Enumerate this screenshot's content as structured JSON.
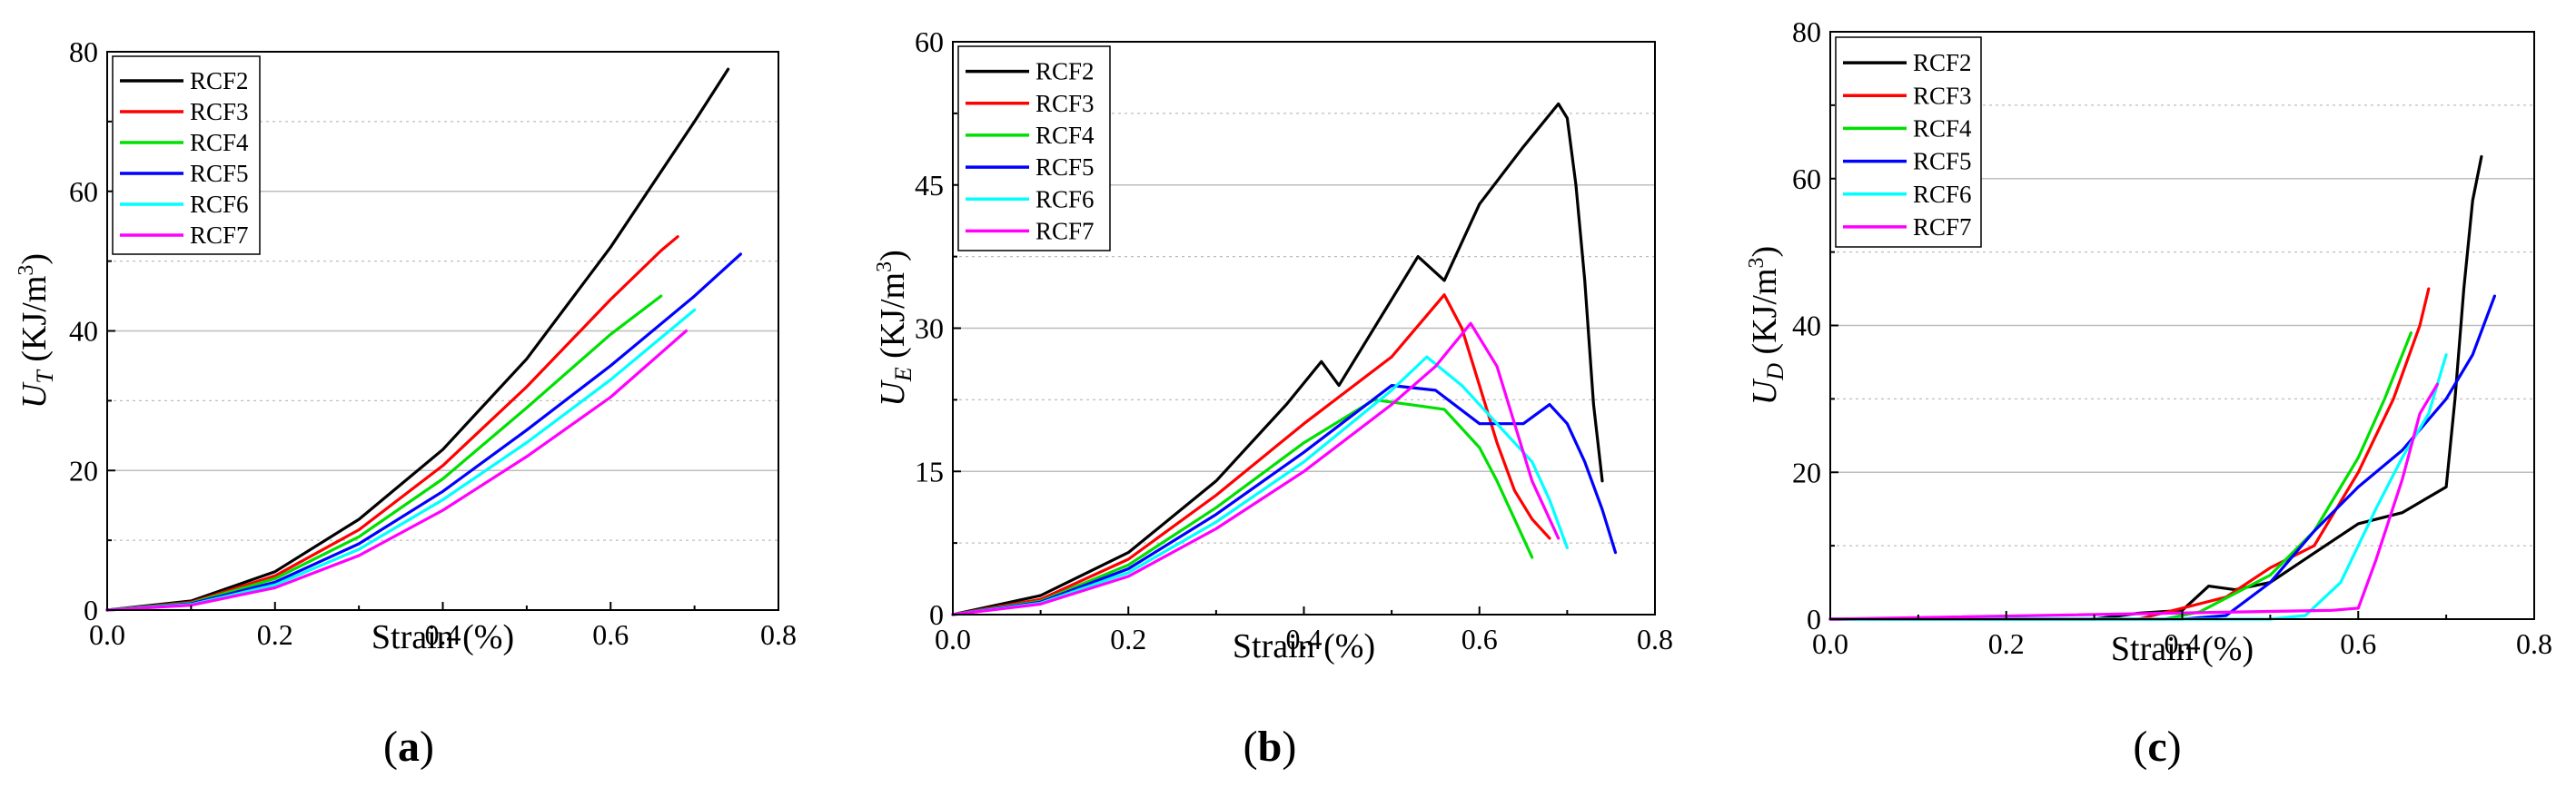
{
  "colors": {
    "RCF2": "#000000",
    "RCF3": "#ff0000",
    "RCF4": "#00e000",
    "RCF5": "#0000ff",
    "RCF6": "#00ffff",
    "RCF7": "#ff00ff",
    "grid": "#bdbdbd"
  },
  "chart_data": [
    {
      "type": "line",
      "panel_label": "(a)",
      "panel_letter": "a",
      "xlabel": "Strain (%)",
      "ylabel": "U_T (KJ/m³)",
      "ylabel_base": "U",
      "ylabel_sub": "T",
      "ylabel_unit": " (KJ/m",
      "ylabel_sup": "3",
      "xlim": [
        0.0,
        0.8
      ],
      "ylim": [
        0,
        80
      ],
      "xticks": [
        0.0,
        0.2,
        0.4,
        0.6,
        0.8
      ],
      "xtick_labels": [
        "0.0",
        "0.2",
        "0.4",
        "0.6",
        "0.8"
      ],
      "yticks": [
        0,
        20,
        40,
        60,
        80
      ],
      "ytick_labels": [
        "0",
        "20",
        "40",
        "60",
        "80"
      ],
      "grid": "horizontal",
      "legend": "top-left",
      "series": [
        {
          "name": "RCF2",
          "x": [
            0,
            0.1,
            0.2,
            0.3,
            0.4,
            0.5,
            0.6,
            0.7,
            0.74
          ],
          "y": [
            0,
            1.3,
            5.5,
            13,
            23,
            36,
            52,
            70,
            77.5
          ]
        },
        {
          "name": "RCF3",
          "x": [
            0,
            0.1,
            0.2,
            0.3,
            0.4,
            0.5,
            0.6,
            0.66,
            0.68
          ],
          "y": [
            0,
            1.1,
            4.9,
            11.5,
            20.7,
            32,
            44.5,
            51.5,
            53.5
          ]
        },
        {
          "name": "RCF4",
          "x": [
            0,
            0.1,
            0.2,
            0.3,
            0.4,
            0.5,
            0.6,
            0.66
          ],
          "y": [
            0,
            1.0,
            4.5,
            10.5,
            18.8,
            29,
            39.5,
            45
          ]
        },
        {
          "name": "RCF5",
          "x": [
            0,
            0.1,
            0.2,
            0.3,
            0.4,
            0.5,
            0.6,
            0.7,
            0.755
          ],
          "y": [
            0,
            0.9,
            4.0,
            9.5,
            17,
            25.8,
            35,
            45,
            51
          ]
        },
        {
          "name": "RCF6",
          "x": [
            0,
            0.1,
            0.2,
            0.3,
            0.4,
            0.5,
            0.6,
            0.7
          ],
          "y": [
            0,
            0.8,
            3.6,
            8.7,
            15.8,
            24,
            33,
            43
          ]
        },
        {
          "name": "RCF7",
          "x": [
            0,
            0.1,
            0.2,
            0.3,
            0.4,
            0.5,
            0.6,
            0.69
          ],
          "y": [
            0,
            0.7,
            3.2,
            7.8,
            14.3,
            22,
            30.5,
            40
          ]
        }
      ]
    },
    {
      "type": "line",
      "panel_label": "(b)",
      "panel_letter": "b",
      "xlabel": "Strain (%)",
      "ylabel": "U_E (KJ/m³)",
      "ylabel_base": "U",
      "ylabel_sub": "E",
      "ylabel_unit": " (KJ/m",
      "ylabel_sup": "3",
      "xlim": [
        0.0,
        0.8
      ],
      "ylim": [
        0,
        60
      ],
      "xticks": [
        0.0,
        0.2,
        0.4,
        0.6,
        0.8
      ],
      "xtick_labels": [
        "0.0",
        "0.2",
        "0.4",
        "0.6",
        "0.8"
      ],
      "yticks": [
        0,
        15,
        30,
        45,
        60
      ],
      "ytick_labels": [
        "0",
        "15",
        "30",
        "45",
        "60"
      ],
      "grid": "horizontal",
      "legend": "top-left",
      "series": [
        {
          "name": "RCF2",
          "x": [
            0,
            0.1,
            0.2,
            0.3,
            0.38,
            0.42,
            0.44,
            0.5,
            0.53,
            0.56,
            0.6,
            0.65,
            0.69,
            0.7,
            0.71,
            0.72,
            0.73,
            0.74
          ],
          "y": [
            0,
            2,
            6.5,
            14,
            22,
            26.5,
            24,
            33,
            37.5,
            35,
            43,
            49,
            53.5,
            52,
            45,
            35,
            22,
            14
          ]
        },
        {
          "name": "RCF3",
          "x": [
            0,
            0.1,
            0.2,
            0.3,
            0.4,
            0.45,
            0.5,
            0.56,
            0.58,
            0.6,
            0.62,
            0.64,
            0.66,
            0.68
          ],
          "y": [
            0,
            1.6,
            5.8,
            12.5,
            20,
            23.5,
            27,
            33.5,
            30,
            24,
            18,
            13,
            10,
            8
          ]
        },
        {
          "name": "RCF4",
          "x": [
            0,
            0.1,
            0.2,
            0.3,
            0.4,
            0.48,
            0.52,
            0.56,
            0.6,
            0.62,
            0.64,
            0.66
          ],
          "y": [
            0,
            1.4,
            5.2,
            11.2,
            18,
            22.5,
            22,
            21.5,
            17.5,
            14,
            10,
            6
          ]
        },
        {
          "name": "RCF5",
          "x": [
            0,
            0.1,
            0.2,
            0.3,
            0.4,
            0.5,
            0.55,
            0.6,
            0.65,
            0.68,
            0.7,
            0.72,
            0.74,
            0.755
          ],
          "y": [
            0,
            1.3,
            4.8,
            10.5,
            17,
            24,
            23.5,
            20,
            20,
            22,
            20,
            16,
            11,
            6.5
          ]
        },
        {
          "name": "RCF6",
          "x": [
            0,
            0.1,
            0.2,
            0.3,
            0.4,
            0.5,
            0.54,
            0.58,
            0.62,
            0.66,
            0.68,
            0.7
          ],
          "y": [
            0,
            1.2,
            4.4,
            9.7,
            16,
            23.5,
            27,
            24,
            20,
            16,
            12,
            7
          ]
        },
        {
          "name": "RCF7",
          "x": [
            0,
            0.1,
            0.2,
            0.3,
            0.4,
            0.5,
            0.55,
            0.59,
            0.62,
            0.64,
            0.66,
            0.69
          ],
          "y": [
            0,
            1.1,
            4.0,
            9.0,
            15,
            22,
            26,
            30.5,
            26,
            20,
            14,
            8
          ]
        }
      ]
    },
    {
      "type": "line",
      "panel_label": "(c)",
      "panel_letter": "c",
      "xlabel": "Strain (%)",
      "ylabel": "U_D (KJ/m³)",
      "ylabel_base": "U",
      "ylabel_sub": "D",
      "ylabel_unit": " (KJ/m",
      "ylabel_sup": "3",
      "xlim": [
        0.0,
        0.8
      ],
      "ylim": [
        0,
        80
      ],
      "xticks": [
        0.0,
        0.2,
        0.4,
        0.6,
        0.8
      ],
      "xtick_labels": [
        "0.0",
        "0.2",
        "0.4",
        "0.6",
        "0.8"
      ],
      "yticks": [
        0,
        20,
        40,
        60,
        80
      ],
      "ytick_labels": [
        "0",
        "20",
        "40",
        "60",
        "80"
      ],
      "grid": "horizontal",
      "legend": "top-left",
      "series": [
        {
          "name": "RCF2",
          "x": [
            0,
            0.3,
            0.35,
            0.4,
            0.43,
            0.46,
            0.5,
            0.55,
            0.6,
            0.65,
            0.7,
            0.71,
            0.72,
            0.73,
            0.74
          ],
          "y": [
            0,
            0,
            0.8,
            1.2,
            4.5,
            4,
            5,
            9,
            13,
            14.5,
            18,
            30,
            45,
            57,
            63
          ]
        },
        {
          "name": "RCF3",
          "x": [
            0,
            0.35,
            0.4,
            0.45,
            0.5,
            0.55,
            0.6,
            0.64,
            0.67,
            0.68
          ],
          "y": [
            0,
            0,
            1.5,
            3,
            7,
            10,
            20,
            30,
            40,
            45
          ]
        },
        {
          "name": "RCF4",
          "x": [
            0,
            0.38,
            0.42,
            0.46,
            0.5,
            0.55,
            0.6,
            0.63,
            0.66
          ],
          "y": [
            0,
            0,
            1,
            3.5,
            6,
            12,
            22,
            30,
            39
          ]
        },
        {
          "name": "RCF5",
          "x": [
            0,
            0.4,
            0.45,
            0.5,
            0.55,
            0.6,
            0.65,
            0.7,
            0.73,
            0.755
          ],
          "y": [
            0,
            0,
            0.5,
            5,
            12,
            18,
            23,
            30,
            36,
            44
          ]
        },
        {
          "name": "RCF6",
          "x": [
            0,
            0.5,
            0.54,
            0.58,
            0.62,
            0.65,
            0.68,
            0.7
          ],
          "y": [
            0,
            0,
            0.5,
            5,
            15,
            22,
            28,
            36
          ]
        },
        {
          "name": "RCF7",
          "x": [
            0,
            0.57,
            0.6,
            0.62,
            0.65,
            0.67,
            0.69
          ],
          "y": [
            0,
            1.2,
            1.5,
            8,
            19,
            28,
            32
          ]
        }
      ]
    }
  ]
}
